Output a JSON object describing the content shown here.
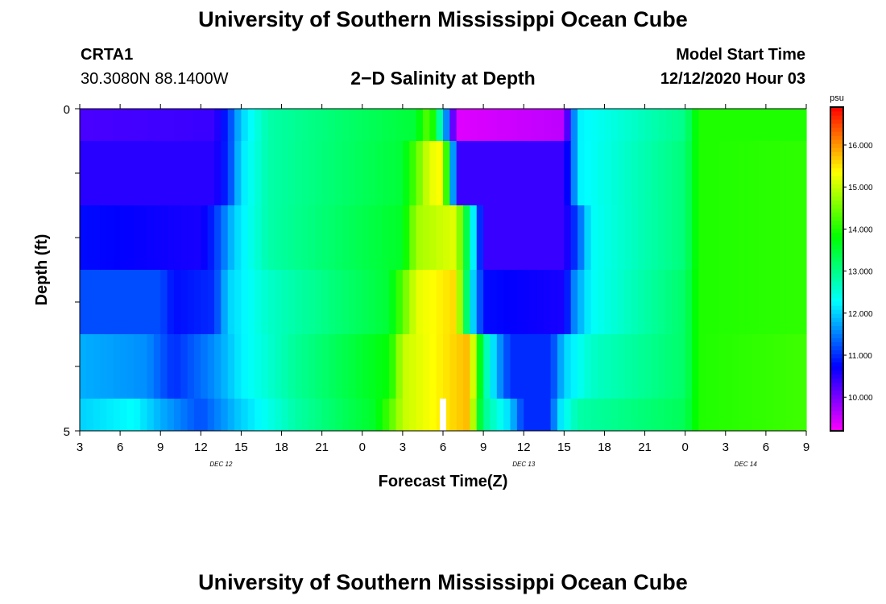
{
  "page": {
    "title": "University of Southern Mississippi Ocean Cube",
    "footer_title": "University of Southern Mississippi Ocean Cube"
  },
  "station": {
    "name": "CRTA1",
    "coords": "30.3080N 88.1400W"
  },
  "model_start": {
    "label": "Model Start Time",
    "value": "12/12/2020 Hour 03"
  },
  "chart_data": {
    "type": "heatmap",
    "title": "2−D Salinity at Depth",
    "xlabel": "Forecast Time(Z)",
    "ylabel": "Depth (ft)",
    "ylim": [
      0,
      5
    ],
    "yticks": [
      0,
      1,
      2,
      3,
      4,
      5
    ],
    "ytick_labels": [
      "0",
      "5"
    ],
    "x_hour_range": [
      0,
      54
    ],
    "xtick_labels": [
      "3",
      "6",
      "9",
      "12",
      "15",
      "18",
      "21",
      "0",
      "3",
      "6",
      "9",
      "12",
      "15",
      "18",
      "21",
      "0",
      "3",
      "6",
      "9"
    ],
    "day_labels": [
      {
        "text": "DEC 12",
        "hour": 10.5
      },
      {
        "text": "DEC 13",
        "hour": 33
      },
      {
        "text": "DEC 14",
        "hour": 49.5
      }
    ],
    "colorbar": {
      "unit": "psu",
      "range": [
        9.2,
        16.9
      ],
      "ticks": [
        10,
        11,
        12,
        13,
        14,
        15,
        16
      ],
      "tick_labels": [
        "10.000",
        "11.000",
        "12.000",
        "13.000",
        "14.000",
        "15.000",
        "16.000"
      ]
    },
    "depth_rows": [
      {
        "depth_range": [
          0,
          0.5
        ],
        "points": [
          [
            0,
            10.3
          ],
          [
            10,
            10.4
          ],
          [
            11,
            11.0
          ],
          [
            12,
            12.0
          ],
          [
            14,
            12.8
          ],
          [
            20,
            13.2
          ],
          [
            25,
            13.5
          ],
          [
            26,
            14.5
          ],
          [
            27,
            12.3
          ],
          [
            28,
            9.4
          ],
          [
            36,
            9.6
          ],
          [
            36.6,
            11.2
          ],
          [
            37,
            12.2
          ],
          [
            45,
            13.0
          ],
          [
            46,
            14.0
          ],
          [
            54,
            14.0
          ]
        ]
      },
      {
        "depth_range": [
          0.5,
          1.5
        ],
        "points": [
          [
            0,
            10.5
          ],
          [
            10,
            10.5
          ],
          [
            11,
            11.0
          ],
          [
            12,
            12.1
          ],
          [
            14,
            12.8
          ],
          [
            24,
            13.5
          ],
          [
            26,
            15.2
          ],
          [
            27,
            15.4
          ],
          [
            28,
            10.4
          ],
          [
            36,
            10.4
          ],
          [
            36.6,
            11.2
          ],
          [
            37,
            12.2
          ],
          [
            45,
            13.1
          ],
          [
            46,
            14.0
          ],
          [
            54,
            14.1
          ]
        ]
      },
      {
        "depth_range": [
          1.5,
          2.5
        ],
        "points": [
          [
            0,
            10.8
          ],
          [
            9,
            10.6
          ],
          [
            10,
            11.0
          ],
          [
            11.5,
            12.0
          ],
          [
            14,
            12.8
          ],
          [
            24,
            13.6
          ],
          [
            25,
            14.8
          ],
          [
            28,
            15.2
          ],
          [
            29,
            12.8
          ],
          [
            30,
            10.4
          ],
          [
            36,
            10.4
          ],
          [
            37,
            11.2
          ],
          [
            38,
            12.3
          ],
          [
            45,
            13.1
          ],
          [
            46,
            14.0
          ],
          [
            54,
            14.1
          ]
        ]
      },
      {
        "depth_range": [
          2.5,
          3.5
        ],
        "points": [
          [
            0,
            11.2
          ],
          [
            6,
            11.2
          ],
          [
            7,
            10.8
          ],
          [
            10,
            11.0
          ],
          [
            11,
            12.0
          ],
          [
            14,
            12.6
          ],
          [
            23,
            13.5
          ],
          [
            25,
            15.2
          ],
          [
            28,
            15.6
          ],
          [
            29,
            12.4
          ],
          [
            30,
            10.8
          ],
          [
            36,
            10.6
          ],
          [
            36.8,
            11.6
          ],
          [
            38,
            12.3
          ],
          [
            45,
            13.2
          ],
          [
            46,
            14.0
          ],
          [
            54,
            14.1
          ]
        ]
      },
      {
        "depth_range": [
          3.5,
          4.5
        ],
        "points": [
          [
            0,
            11.8
          ],
          [
            5,
            11.6
          ],
          [
            7,
            11.0
          ],
          [
            10,
            11.6
          ],
          [
            12,
            12.2
          ],
          [
            16,
            12.9
          ],
          [
            23,
            13.8
          ],
          [
            24,
            15.0
          ],
          [
            29,
            15.8
          ],
          [
            30,
            13.0
          ],
          [
            31,
            11.8
          ],
          [
            32,
            11.0
          ],
          [
            35,
            11.0
          ],
          [
            36,
            12.0
          ],
          [
            38,
            12.6
          ],
          [
            45,
            13.2
          ],
          [
            46,
            14.0
          ],
          [
            54,
            14.2
          ]
        ]
      },
      {
        "depth_range": [
          4.5,
          5
        ],
        "points": [
          [
            0,
            12.0
          ],
          [
            4,
            12.3
          ],
          [
            6,
            11.8
          ],
          [
            9,
            11.2
          ],
          [
            12,
            12.0
          ],
          [
            16,
            12.8
          ],
          [
            22,
            13.6
          ],
          [
            23.5,
            14.6
          ],
          [
            24,
            15.0
          ],
          [
            29,
            15.8
          ],
          [
            29.5,
            14.0
          ],
          [
            30,
            13.0
          ],
          [
            32,
            12.0
          ],
          [
            33,
            11.0
          ],
          [
            35,
            11.0
          ],
          [
            35.5,
            12.0
          ],
          [
            37,
            12.8
          ],
          [
            45,
            13.3
          ],
          [
            46,
            14.0
          ],
          [
            54,
            14.2
          ]
        ]
      }
    ],
    "missing_cell": {
      "hour": 27,
      "depth_range": [
        4.5,
        5
      ]
    }
  }
}
